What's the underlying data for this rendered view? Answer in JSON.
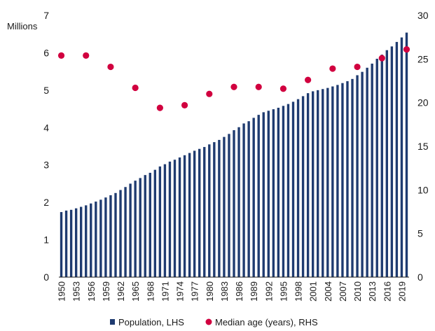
{
  "colors": {
    "bar": "#1f3b70",
    "dot": "#d1003f",
    "axis": "#1a1a1a"
  },
  "chart_data": {
    "type": "bar",
    "left_axis_label": "Millions",
    "y_left_ticks": [
      "0",
      "1",
      "2",
      "3",
      "4",
      "5",
      "6",
      "7"
    ],
    "y_right_ticks": [
      "0",
      "5",
      "10",
      "15",
      "20",
      "25",
      "30"
    ],
    "ylim_left": [
      0,
      7
    ],
    "ylim_right": [
      0,
      30
    ],
    "x_labels": [
      "1950",
      "1953",
      "1956",
      "1959",
      "1962",
      "1965",
      "1968",
      "1971",
      "1974",
      "1977",
      "1980",
      "1983",
      "1986",
      "1989",
      "1992",
      "1995",
      "1998",
      "2001",
      "2004",
      "2007",
      "2010",
      "2013",
      "2016",
      "2019"
    ],
    "series": [
      {
        "name": "Population, LHS",
        "type": "bar",
        "axis": "left",
        "x": [
          1950,
          1951,
          1952,
          1953,
          1954,
          1955,
          1956,
          1957,
          1958,
          1959,
          1960,
          1961,
          1962,
          1963,
          1964,
          1965,
          1966,
          1967,
          1968,
          1969,
          1970,
          1971,
          1972,
          1973,
          1974,
          1975,
          1976,
          1977,
          1978,
          1979,
          1980,
          1981,
          1982,
          1983,
          1984,
          1985,
          1986,
          1987,
          1988,
          1989,
          1990,
          1991,
          1992,
          1993,
          1994,
          1995,
          1996,
          1997,
          1998,
          1999,
          2000,
          2001,
          2002,
          2003,
          2004,
          2005,
          2006,
          2007,
          2008,
          2009,
          2010,
          2011,
          2012,
          2013,
          2014,
          2015,
          2016,
          2017,
          2018,
          2019,
          2020
        ],
        "values": [
          1.74,
          1.78,
          1.8,
          1.84,
          1.88,
          1.92,
          1.97,
          2.02,
          2.07,
          2.13,
          2.19,
          2.25,
          2.33,
          2.41,
          2.5,
          2.58,
          2.65,
          2.73,
          2.79,
          2.87,
          2.96,
          3.02,
          3.09,
          3.14,
          3.2,
          3.26,
          3.32,
          3.38,
          3.43,
          3.48,
          3.55,
          3.61,
          3.67,
          3.75,
          3.83,
          3.93,
          4.01,
          4.11,
          4.17,
          4.26,
          4.34,
          4.41,
          4.45,
          4.49,
          4.53,
          4.58,
          4.63,
          4.69,
          4.76,
          4.84,
          4.92,
          4.97,
          5.0,
          5.03,
          5.06,
          5.1,
          5.14,
          5.19,
          5.24,
          5.3,
          5.4,
          5.49,
          5.6,
          5.71,
          5.84,
          5.95,
          6.07,
          6.17,
          6.29,
          6.41,
          6.54
        ]
      },
      {
        "name": "Median age (years), RHS",
        "type": "scatter",
        "axis": "right",
        "x": [
          1950,
          1955,
          1960,
          1965,
          1970,
          1975,
          1980,
          1985,
          1990,
          1995,
          2000,
          2005,
          2010,
          2015,
          2020
        ],
        "values": [
          25.4,
          25.4,
          24.1,
          21.7,
          19.4,
          19.7,
          21.0,
          21.8,
          21.8,
          21.6,
          22.6,
          23.9,
          24.1,
          25.1,
          26.1
        ]
      }
    ],
    "xlim": [
      1949.5,
      2020.5
    ],
    "grid": false,
    "legend_position": "bottom-center"
  }
}
